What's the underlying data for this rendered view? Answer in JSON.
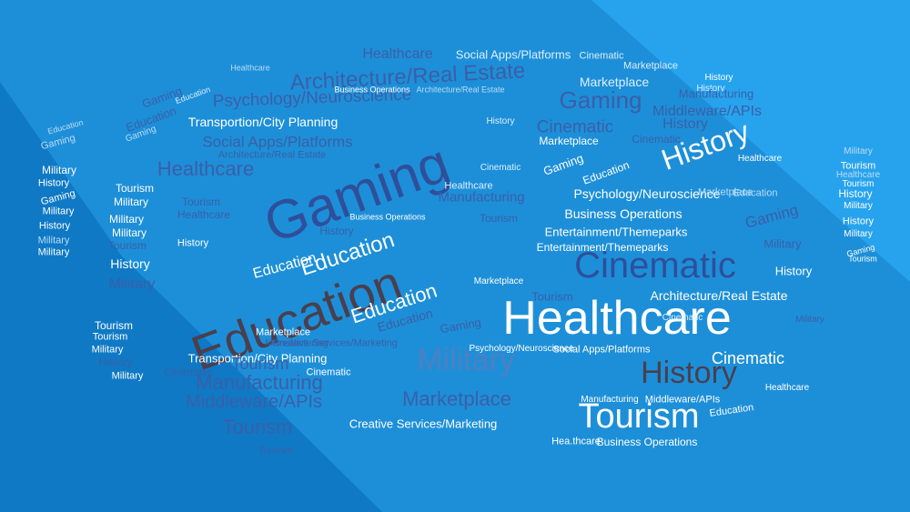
{
  "palette": {
    "bg_base": "#1d8fd8",
    "bg_light": "#27a3ee",
    "bg_dark": "#0f79c5",
    "white": "#ffffff",
    "pale": "#dcefff",
    "soft": "#bcdcf5",
    "mid": "#4f7fc0",
    "navy": "#2e4f9a",
    "dusk": "#3a5fa8",
    "brown": "#4a3f4e"
  },
  "words": [
    "Healthcare",
    "Social Apps/Platforms",
    "Cinematic",
    "Architecture/Real Estate",
    "Marketplace",
    "Gaming",
    "Psychology/Neuroscience",
    "Business Operations",
    "Manufacturing",
    "Transportion/City Planning",
    "Middleware/APIs",
    "History",
    "Education",
    "Military",
    "Tourism",
    "Entertainment/Themeparks",
    "Creative Services/Marketing",
    "Hea.thcare"
  ]
}
